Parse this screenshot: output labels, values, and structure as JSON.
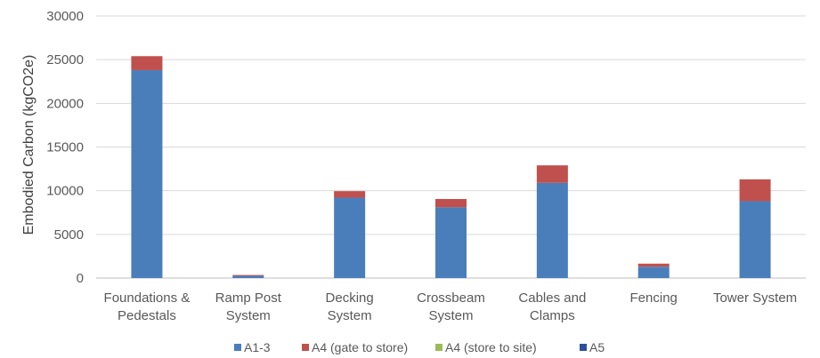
{
  "chart_data": {
    "type": "bar",
    "stacked": true,
    "categories": [
      [
        "Foundations &",
        "Pedestals"
      ],
      [
        "Ramp Post",
        "System"
      ],
      [
        "Decking",
        "System"
      ],
      [
        "Crossbeam",
        "System"
      ],
      [
        "Cables and",
        "Clamps"
      ],
      [
        "Fencing"
      ],
      [
        "Tower System"
      ]
    ],
    "series": [
      {
        "name": "A1-3",
        "color": "#4a7ebb",
        "values": [
          23800,
          250,
          9200,
          8100,
          10900,
          1300,
          8800
        ]
      },
      {
        "name": "A4 (gate to store)",
        "color": "#c0504d",
        "values": [
          1600,
          100,
          750,
          950,
          2000,
          350,
          2500
        ]
      },
      {
        "name": "A4 (store to site)",
        "color": "#9bbb59",
        "values": [
          0,
          0,
          0,
          0,
          0,
          0,
          0
        ]
      },
      {
        "name": "A5",
        "color": "#2e4f9c",
        "values": [
          0,
          0,
          0,
          0,
          0,
          0,
          0
        ]
      }
    ],
    "ylabel": "Embodied Carbon (kgCO2e)",
    "xlabel": "",
    "ylim": [
      0,
      30000
    ],
    "yticks": [
      0,
      5000,
      10000,
      15000,
      20000,
      25000,
      30000
    ],
    "grid": true,
    "legend_position": "bottom"
  }
}
